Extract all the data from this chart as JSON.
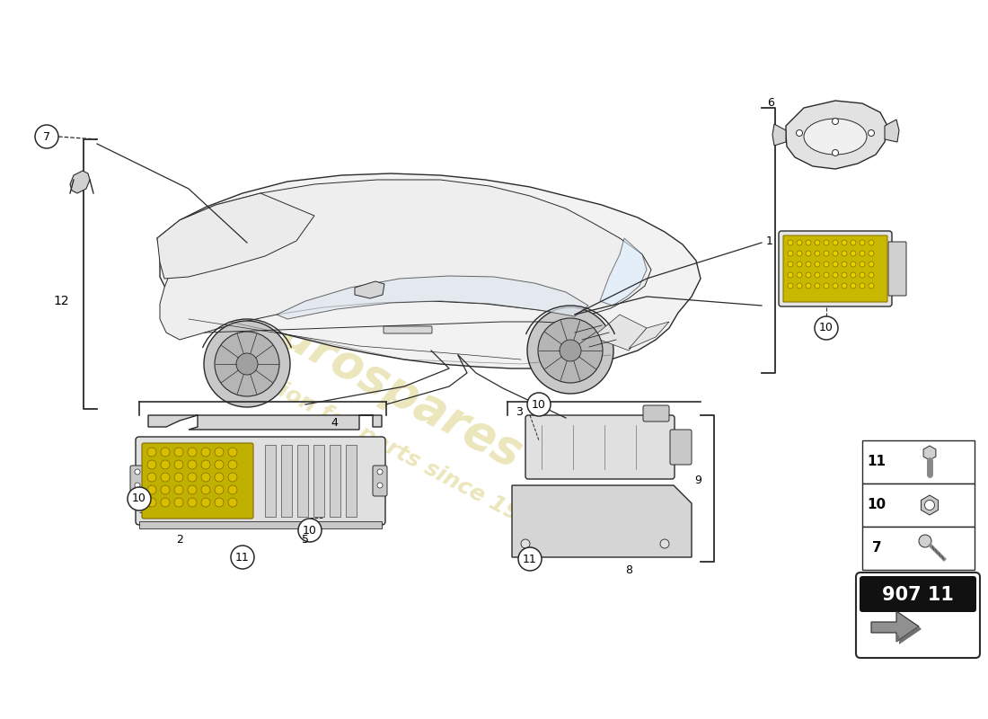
{
  "bg_color": "#ffffff",
  "part_number": "907 11",
  "line_color": "#2a2a2a",
  "callout_fill": "#ffffff",
  "callout_edge": "#2a2a2a",
  "car_fill": "#f5f5f5",
  "car_edge": "#333333",
  "ecu_fill": "#e8e8e8",
  "ecu_edge": "#2a2a2a",
  "bracket_fill": "#d8d8d8",
  "gold_fill": "#c8a800",
  "gold_edge": "#8a7000",
  "watermark_color": "#c8b840",
  "watermark_alpha": 0.35,
  "parts_legend": [
    {
      "num": "11",
      "type": "bolt"
    },
    {
      "num": "10",
      "type": "nut"
    },
    {
      "num": "7",
      "type": "screw"
    }
  ]
}
